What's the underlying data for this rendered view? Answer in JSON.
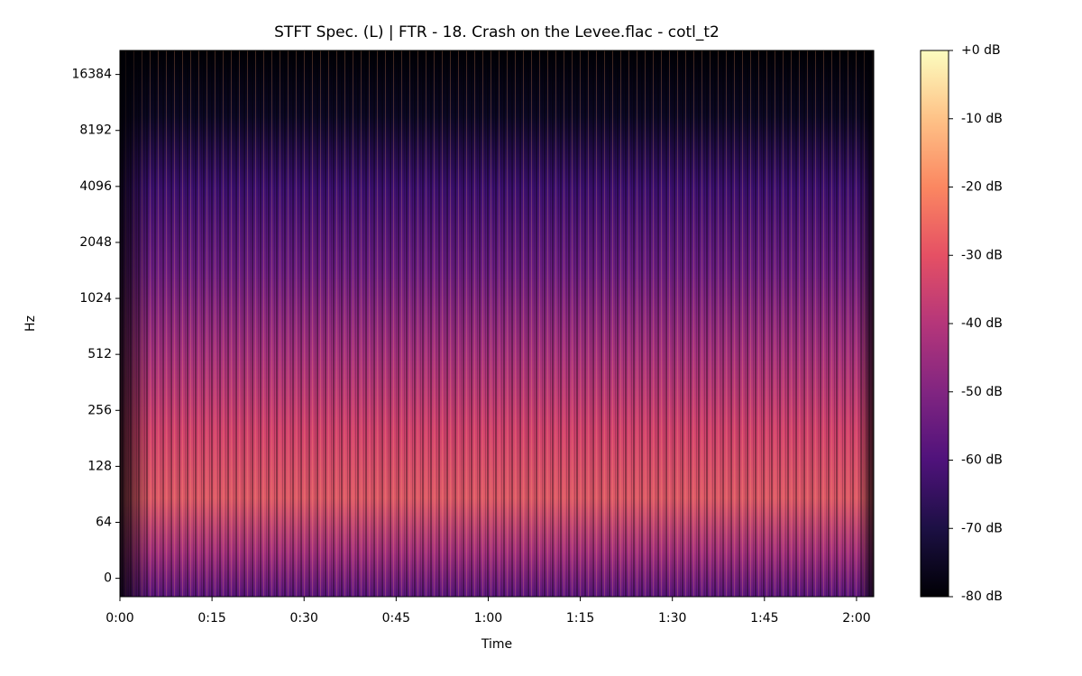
{
  "chart_data": {
    "type": "spectrogram",
    "title": "STFT Spec. (L) | FTR - 18. Crash on the Levee.flac - cotl_t2",
    "xlabel": "Time",
    "ylabel": "Hz",
    "xlim": [
      0,
      122.8
    ],
    "xticks": [
      {
        "value": 0,
        "label": "0:00"
      },
      {
        "value": 15,
        "label": "0:15"
      },
      {
        "value": 30,
        "label": "0:30"
      },
      {
        "value": 45,
        "label": "0:45"
      },
      {
        "value": 60,
        "label": "1:00"
      },
      {
        "value": 75,
        "label": "1:15"
      },
      {
        "value": 90,
        "label": "1:30"
      },
      {
        "value": 105,
        "label": "1:45"
      },
      {
        "value": 120,
        "label": "2:00"
      }
    ],
    "yscale": "symlog",
    "linthresh": 64,
    "ylim": [
      -21,
      22050
    ],
    "yticks": [
      0,
      64,
      128,
      256,
      512,
      1024,
      2048,
      4096,
      8192,
      16384
    ],
    "colormap": "magma",
    "clim": [
      -80,
      0
    ],
    "cticks": [
      {
        "value": 0,
        "label": "+0 dB"
      },
      {
        "value": -10,
        "label": "-10 dB"
      },
      {
        "value": -20,
        "label": "-20 dB"
      },
      {
        "value": -30,
        "label": "-30 dB"
      },
      {
        "value": -40,
        "label": "-40 dB"
      },
      {
        "value": -50,
        "label": "-50 dB"
      },
      {
        "value": -60,
        "label": "-60 dB"
      },
      {
        "value": -70,
        "label": "-70 dB"
      },
      {
        "value": -80,
        "label": "-80 dB"
      }
    ]
  }
}
